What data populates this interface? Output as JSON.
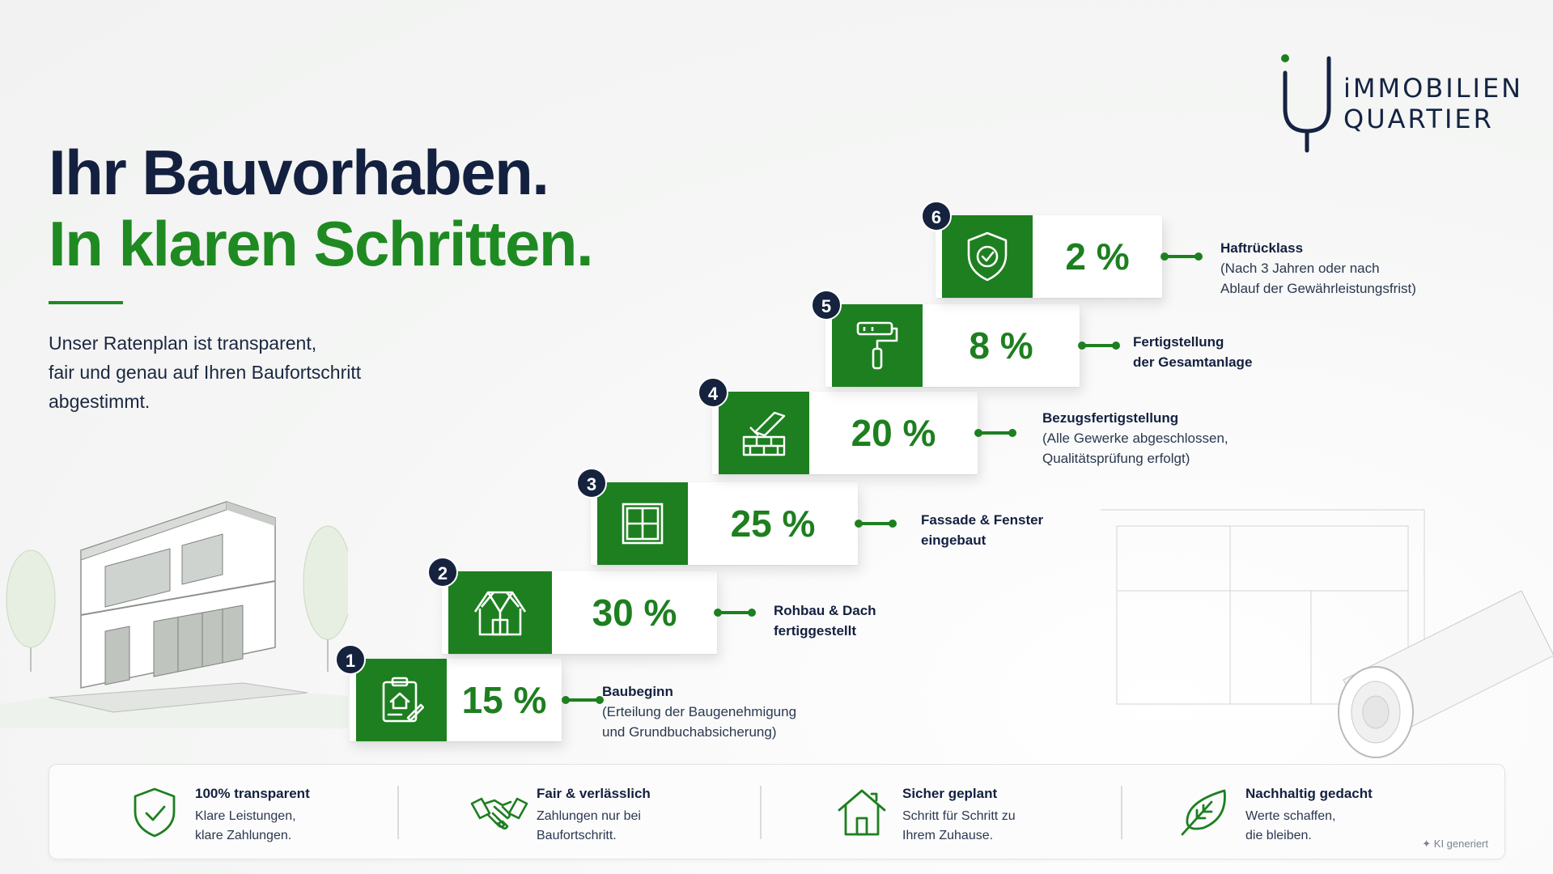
{
  "logo": {
    "line1": "iMMOBILIEN",
    "line2": "QUARTIER"
  },
  "headline": {
    "line1": "Ihr Bauvorhaben.",
    "line2": "In klaren Schritten."
  },
  "intro": {
    "line1": "Unser Ratenplan ist transparent,",
    "line2": "fair und genau auf Ihren Baufortschritt",
    "line3": "abgestimmt."
  },
  "steps": [
    {
      "num": "1",
      "percent": "15 %",
      "icon": "clipboard-house-icon",
      "title": "Baubeginn",
      "sub1": "(Erteilung der Baugenehmigung",
      "sub2": "und Grundbuchabsicherung)"
    },
    {
      "num": "2",
      "percent": "30 %",
      "icon": "house-frame-icon",
      "title": "Rohbau & Dach",
      "sub1": "fertiggestellt",
      "sub2": ""
    },
    {
      "num": "3",
      "percent": "25 %",
      "icon": "window-icon",
      "title": "Fassade & Fenster",
      "sub1": "eingebaut",
      "sub2": ""
    },
    {
      "num": "4",
      "percent": "20 %",
      "icon": "trowel-bricks-icon",
      "title": "Bezugsfertigstellung",
      "sub1": "(Alle Gewerke abgeschlossen,",
      "sub2": "Qualitätsprüfung erfolgt)"
    },
    {
      "num": "5",
      "percent": "8 %",
      "icon": "paint-roller-icon",
      "title": "Fertigstellung",
      "sub1": "der Gesamtanlage",
      "sub2": ""
    },
    {
      "num": "6",
      "percent": "2 %",
      "icon": "shield-check-icon",
      "title": "Haftrücklass",
      "sub1": "(Nach 3 Jahren oder nach",
      "sub2": "Ablauf der Gewährleistungsfrist)"
    }
  ],
  "features": [
    {
      "icon": "shield-check-icon",
      "title": "100% transparent",
      "line1": "Klare Leistungen,",
      "line2": "klare Zahlungen."
    },
    {
      "icon": "handshake-icon",
      "title": "Fair & verlässlich",
      "line1": "Zahlungen nur bei",
      "line2": "Baufortschritt."
    },
    {
      "icon": "house-icon",
      "title": "Sicher geplant",
      "line1": "Schritt für Schritt zu",
      "line2": "Ihrem Zuhause."
    },
    {
      "icon": "leaf-icon",
      "title": "Nachhaltig gedacht",
      "line1": "Werte schaffen,",
      "line2": "die bleiben."
    }
  ],
  "ki_note": "✦ KI generiert",
  "colors": {
    "green": "#1d7f1f",
    "navy": "#13203f"
  }
}
